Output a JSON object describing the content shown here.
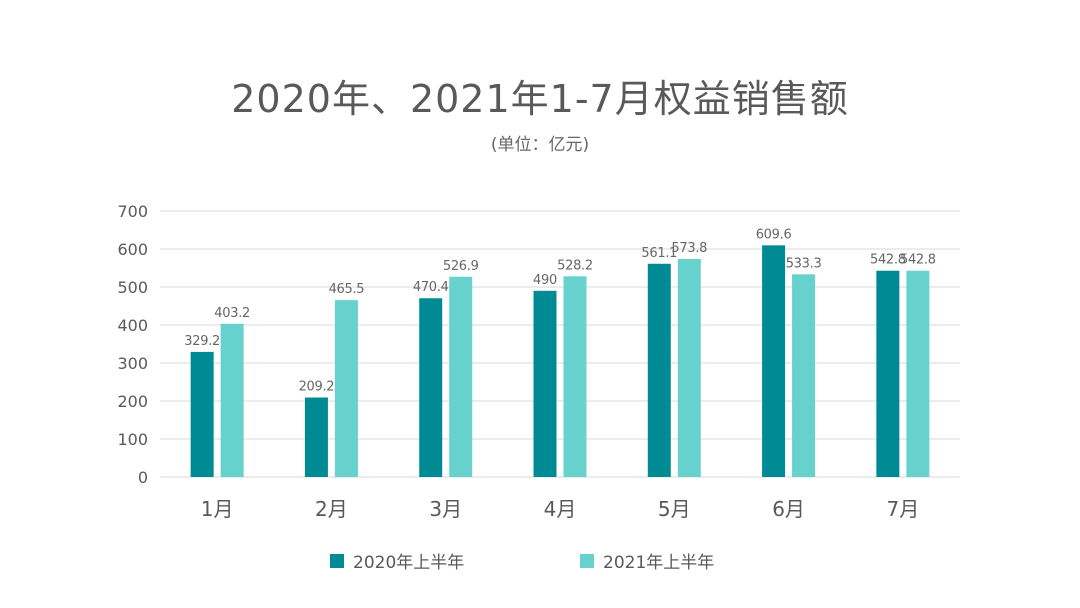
{
  "title": "2020年、2021年1-7月权益销售额",
  "subtitle": "(单位：亿元)",
  "colors": {
    "series_2020": "#008b94",
    "series_2021": "#66d1cd",
    "grid": "#d9d9d9",
    "text": "#595959"
  },
  "chart_data": {
    "type": "bar",
    "title": "2020年、2021年1-7月权益销售额",
    "subtitle": "(单位：亿元)",
    "categories": [
      "1月",
      "2月",
      "3月",
      "4月",
      "5月",
      "6月",
      "7月"
    ],
    "series": [
      {
        "name": "2020年上半年",
        "values": [
          329.2,
          209.2,
          470.4,
          490,
          561.1,
          609.6,
          542.8
        ],
        "labels": [
          "329.2",
          "209.2",
          "470.4",
          "490",
          "561.1",
          "609.6",
          "542.8"
        ]
      },
      {
        "name": "2021年上半年",
        "values": [
          403.2,
          465.5,
          526.9,
          528.2,
          573.8,
          533.3,
          542.8
        ],
        "labels": [
          "403.2",
          "465.5",
          "526.9",
          "528.2",
          "573.8",
          "533.3",
          "542.8"
        ]
      }
    ],
    "ylim": [
      0,
      700
    ],
    "yticks": [
      "0",
      "100",
      "200",
      "300",
      "400",
      "500",
      "600",
      "700"
    ],
    "grid": true,
    "legend_position": "bottom"
  }
}
